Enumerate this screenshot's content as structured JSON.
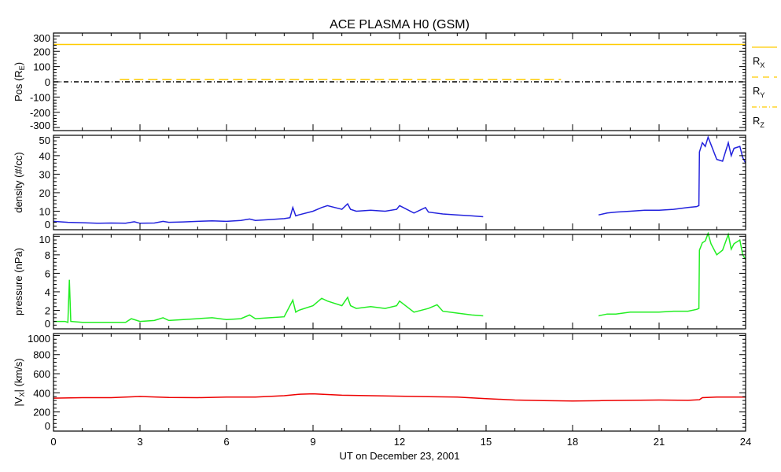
{
  "chart_data": {
    "type": "line",
    "title": "ACE PLASMA H0 (GSM)",
    "xlabel": "UT on December 23, 2001",
    "xlim": [
      0,
      24
    ],
    "xticks": [
      "0",
      "3",
      "6",
      "9",
      "12",
      "15",
      "18",
      "21",
      "24"
    ],
    "legend_placement": "right of top panel",
    "panels": [
      {
        "ylabel": "Pos (R",
        "ylabel_sub": "E",
        "ylabel_end": ")",
        "ylim": [
          -320,
          320
        ],
        "yticks": [
          "300",
          "200",
          "100",
          "0",
          "-100",
          "-200",
          "-300"
        ],
        "ytick_values": [
          300,
          200,
          100,
          0,
          -100,
          -200,
          -300
        ],
        "series": [
          {
            "name": "R",
            "sub": "X",
            "color": "#ffcc00",
            "dash": "",
            "x": [
              0,
              24
            ],
            "y": [
              245,
              245
            ]
          },
          {
            "name": "R",
            "sub": "Y",
            "color": "#ffcc00",
            "dash": "12,6",
            "x": [
              2.3,
              17.6
            ],
            "y": [
              15,
              15
            ]
          },
          {
            "name": "R",
            "sub": "Z",
            "color": "#000000",
            "dash": "6,3,1,3",
            "x": [
              0,
              24
            ],
            "y": [
              0,
              0
            ]
          }
        ]
      },
      {
        "ylabel": "density (#/cc)",
        "ylim": [
          0,
          51
        ],
        "yticks": [
          "50",
          "40",
          "30",
          "20",
          "10",
          "0"
        ],
        "ytick_values": [
          50,
          40,
          30,
          20,
          10,
          0
        ],
        "series": [
          {
            "name": "density",
            "color": "#2222dd",
            "segments": [
              {
                "x": [
                  0,
                  0.5,
                  1,
                  1.5,
                  2,
                  2.5,
                  2.8,
                  3,
                  3.5,
                  3.8,
                  4,
                  4.5,
                  5,
                  5.5,
                  6,
                  6.5,
                  6.8,
                  7,
                  7.5,
                  8,
                  8.2,
                  8.3,
                  8.4,
                  8.5,
                  9,
                  9.3,
                  9.5,
                  10,
                  10.2,
                  10.3,
                  10.5,
                  11,
                  11.5,
                  11.9,
                  12,
                  12.5,
                  12.9,
                  13,
                  13.5,
                  14,
                  14.5,
                  14.9
                ],
                "y": [
                  4.5,
                  4,
                  3.8,
                  3.5,
                  3.6,
                  3.5,
                  4.3,
                  3.5,
                  3.6,
                  4.5,
                  4,
                  4.2,
                  4.5,
                  4.8,
                  4.5,
                  5,
                  5.8,
                  5,
                  5.5,
                  6,
                  6.5,
                  12,
                  7.5,
                  8,
                  10,
                  12,
                  13,
                  11,
                  14,
                  11,
                  10,
                  10.5,
                  10,
                  11,
                  13,
                  9,
                  12,
                  9.5,
                  8.5,
                  8,
                  7.5,
                  7
                ]
              },
              {
                "x": [
                  18.9,
                  19.2,
                  19.5,
                  20,
                  20.5,
                  21,
                  21.5,
                  22,
                  22.3,
                  22.38,
                  22.4,
                  22.5,
                  22.6,
                  22.7,
                  22.8,
                  23,
                  23.2,
                  23.4,
                  23.5,
                  23.6,
                  23.8,
                  23.9,
                  24
                ],
                "y": [
                  8,
                  9,
                  9.5,
                  10,
                  10.5,
                  10.5,
                  11,
                  12,
                  12.5,
                  13,
                  42,
                  47,
                  45,
                  50,
                  46,
                  38,
                  37,
                  47,
                  40,
                  44,
                  45,
                  39,
                  36
                ]
              }
            ]
          }
        ]
      },
      {
        "ylabel": "pressure (nPa)",
        "ylim": [
          0,
          10.2
        ],
        "yticks": [
          "10",
          "8",
          "6",
          "4",
          "2",
          "0"
        ],
        "ytick_values": [
          10,
          8,
          6,
          4,
          2,
          0
        ],
        "series": [
          {
            "name": "pressure",
            "color": "#22ee22",
            "segments": [
              {
                "x": [
                  0,
                  0.4,
                  0.5,
                  0.55,
                  0.6,
                  1,
                  1.5,
                  2,
                  2.5,
                  2.7,
                  3,
                  3.5,
                  3.8,
                  4,
                  4.5,
                  5,
                  5.5,
                  6,
                  6.5,
                  6.8,
                  7,
                  7.5,
                  8,
                  8.3,
                  8.4,
                  8.5,
                  9,
                  9.3,
                  9.5,
                  10,
                  10.2,
                  10.3,
                  10.5,
                  11,
                  11.5,
                  11.9,
                  12,
                  12.5,
                  13,
                  13.3,
                  13.5,
                  14,
                  14.5,
                  14.9
                ],
                "y": [
                  0.8,
                  0.8,
                  0.7,
                  5.3,
                  0.8,
                  0.7,
                  0.7,
                  0.7,
                  0.7,
                  1.1,
                  0.8,
                  0.9,
                  1.2,
                  0.9,
                  1,
                  1.1,
                  1.2,
                  1,
                  1.1,
                  1.5,
                  1.1,
                  1.2,
                  1.3,
                  3.1,
                  1.8,
                  2,
                  2.5,
                  3.3,
                  3,
                  2.5,
                  3.4,
                  2.5,
                  2.2,
                  2.4,
                  2.2,
                  2.5,
                  3,
                  1.8,
                  2.2,
                  2.6,
                  1.9,
                  1.7,
                  1.5,
                  1.4
                ]
              },
              {
                "x": [
                  18.9,
                  19.2,
                  19.5,
                  20,
                  20.5,
                  21,
                  21.5,
                  22,
                  22.3,
                  22.38,
                  22.4,
                  22.5,
                  22.6,
                  22.7,
                  22.8,
                  23,
                  23.2,
                  23.4,
                  23.5,
                  23.6,
                  23.8,
                  23.9,
                  24
                ],
                "y": [
                  1.4,
                  1.6,
                  1.6,
                  1.8,
                  1.8,
                  1.8,
                  1.9,
                  1.9,
                  2.1,
                  2.2,
                  8.5,
                  9.3,
                  9.5,
                  10.3,
                  9.2,
                  8,
                  8.5,
                  10.2,
                  8.6,
                  9.2,
                  9.6,
                  8,
                  7.5
                ]
              }
            ]
          }
        ]
      },
      {
        "ylabel": "|V",
        "ylabel_sub": "X",
        "ylabel_end": "| (km/s)",
        "ylim": [
          0,
          1020
        ],
        "yticks": [
          "1000",
          "800",
          "600",
          "400",
          "200",
          "0"
        ],
        "ytick_values": [
          1000,
          800,
          600,
          400,
          200,
          0
        ],
        "series": [
          {
            "name": "|Vx|",
            "color": "#ee0000",
            "segments": [
              {
                "x": [
                  0,
                  1,
                  2,
                  3,
                  4,
                  5,
                  6,
                  7,
                  8,
                  8.5,
                  9,
                  10,
                  11,
                  12,
                  13,
                  14,
                  15,
                  16,
                  17,
                  18,
                  19,
                  20,
                  21,
                  22,
                  22.4,
                  22.5,
                  23,
                  24
                ],
                "y": [
                  345,
                  350,
                  350,
                  362,
                  352,
                  350,
                  355,
                  355,
                  370,
                  385,
                  390,
                  375,
                  370,
                  365,
                  360,
                  355,
                  340,
                  325,
                  318,
                  315,
                  318,
                  322,
                  325,
                  322,
                  328,
                  350,
                  355,
                  355
                ]
              }
            ]
          }
        ]
      }
    ]
  }
}
